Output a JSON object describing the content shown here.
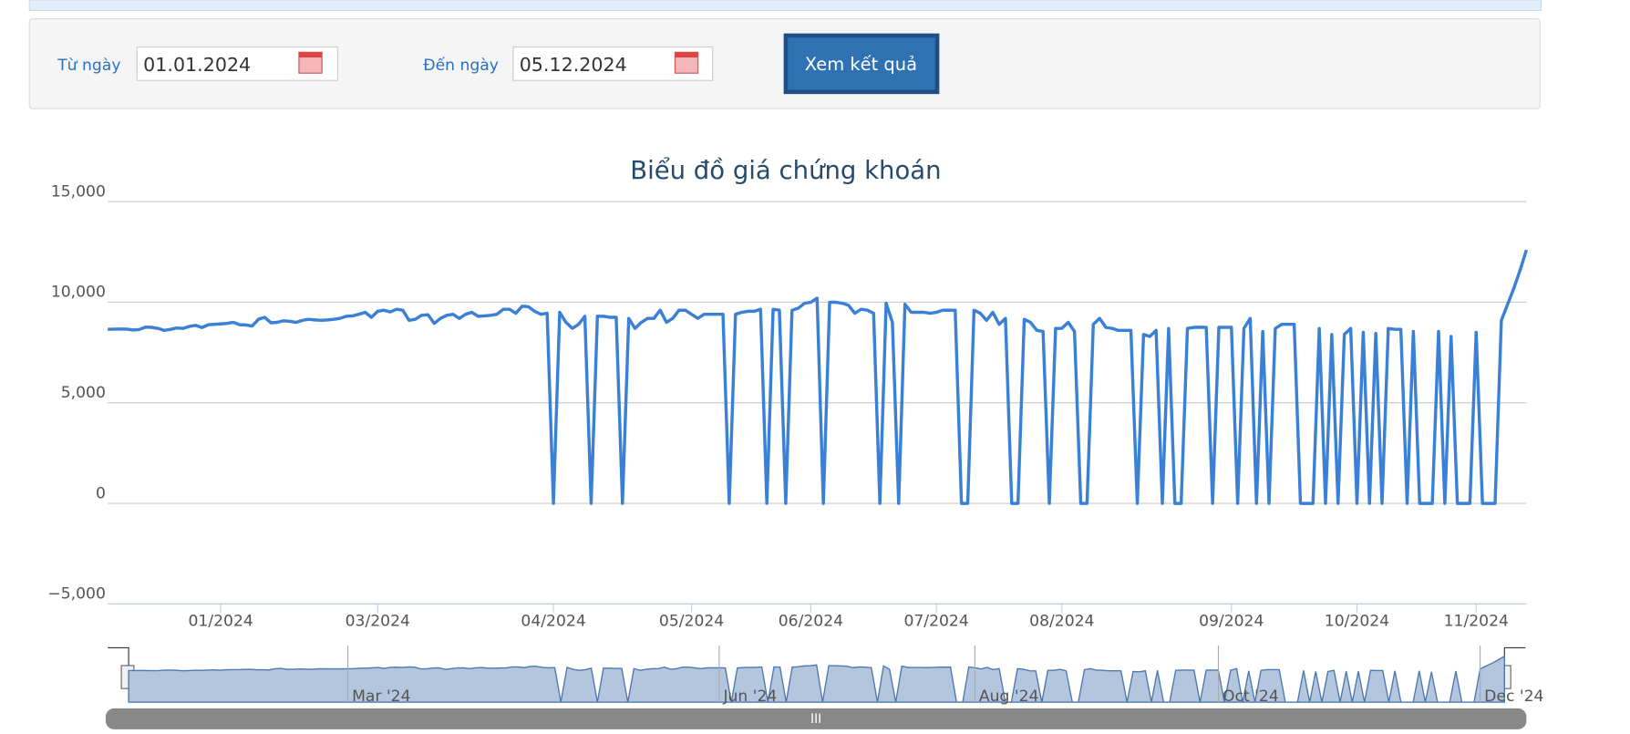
{
  "form": {
    "from_label": "Từ ngày",
    "from_value": "01.01.2024",
    "to_label": "Đến ngày",
    "to_value": "05.12.2024",
    "button": "Xem kết quả"
  },
  "chart_data": {
    "type": "line",
    "title": "Biểu đồ giá chứng khoán",
    "color": "#3a80d6",
    "grid": true,
    "values": [
      8650,
      8660,
      8670,
      8660,
      8620,
      8640,
      8760,
      8750,
      8700,
      8600,
      8650,
      8720,
      8700,
      8800,
      8850,
      8740,
      8880,
      8900,
      8920,
      8950,
      9000,
      8880,
      8870,
      8820,
      9150,
      9250,
      8980,
      9000,
      9080,
      9050,
      9000,
      9100,
      9150,
      9120,
      9100,
      9120,
      9150,
      9200,
      9300,
      9320,
      9400,
      9500,
      9250,
      9550,
      9600,
      9520,
      9650,
      9600,
      9100,
      9150,
      9350,
      9380,
      8950,
      9200,
      9350,
      9400,
      9200,
      9400,
      9500,
      9300,
      9320,
      9350,
      9400,
      9650,
      9650,
      9450,
      9800,
      9780,
      9550,
      9400,
      9450,
      0,
      9500,
      9000,
      8700,
      8900,
      9300,
      0,
      9300,
      9300,
      9250,
      9250,
      0,
      9200,
      8700,
      9000,
      9200,
      9200,
      9600,
      9000,
      9200,
      9600,
      9600,
      9400,
      9200,
      9400,
      9400,
      9400,
      9400,
      0,
      9400,
      9500,
      9550,
      9550,
      9650,
      0,
      9650,
      9600,
      0,
      9600,
      9700,
      9950,
      10000,
      10200,
      0,
      10000,
      10000,
      9950,
      9850,
      9450,
      9650,
      9600,
      9450,
      0,
      9950,
      9000,
      0,
      9900,
      9500,
      9500,
      9500,
      9450,
      9500,
      9600,
      9600,
      9600,
      0,
      0,
      9600,
      9450,
      9100,
      9500,
      8900,
      9200,
      0,
      0,
      9150,
      9000,
      8600,
      8550,
      0,
      8700,
      8700,
      9000,
      8550,
      0,
      0,
      8900,
      9200,
      8750,
      8700,
      8600,
      8600,
      8600,
      0,
      8400,
      8300,
      8600,
      0,
      8700,
      0,
      0,
      8700,
      8750,
      8750,
      8750,
      0,
      8750,
      8750,
      8750,
      0,
      8700,
      9200,
      0,
      8550,
      0,
      8700,
      8900,
      8900,
      8900,
      0,
      0,
      0,
      8700,
      0,
      8400,
      0,
      8400,
      8700,
      0,
      8500,
      0,
      8450,
      0,
      8700,
      8650,
      8650,
      0,
      8550,
      0,
      0,
      0,
      8550,
      0,
      8300,
      0,
      0,
      0,
      8500,
      0,
      0,
      0,
      9100,
      9900,
      10700,
      11600,
      12600
    ],
    "xlim": [
      0,
      226
    ],
    "xticks": [
      {
        "value": 18,
        "label": "01/2024"
      },
      {
        "value": 43,
        "label": "03/2024"
      },
      {
        "value": 71,
        "label": "04/2024"
      },
      {
        "value": 93,
        "label": "05/2024"
      },
      {
        "value": 112,
        "label": "06/2024"
      },
      {
        "value": 132,
        "label": "07/2024"
      },
      {
        "value": 152,
        "label": "08/2024"
      },
      {
        "value": 179,
        "label": "09/2024"
      },
      {
        "value": 199,
        "label": "10/2024"
      },
      {
        "value": 218,
        "label": "11/2024"
      }
    ],
    "ylim": [
      -5000,
      15000
    ],
    "yticks": [
      {
        "value": -5000,
        "label": "−5,000"
      },
      0,
      {
        "value": 5000,
        "label": "5,000"
      },
      {
        "value": 10000,
        "label": "10,000"
      },
      {
        "value": 15000,
        "label": "15,000"
      }
    ],
    "navigator_ticks": [
      {
        "value": 36,
        "label": "Mar '24"
      },
      {
        "value": 97,
        "label": "Jun '24"
      },
      {
        "value": 139,
        "label": "Aug '24"
      },
      {
        "value": 179,
        "label": "Oct '24"
      },
      {
        "value": 222,
        "label": "Dec '24"
      }
    ]
  }
}
